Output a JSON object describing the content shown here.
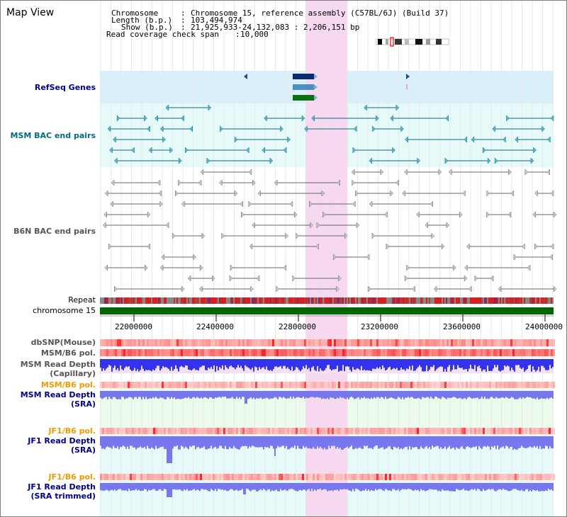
{
  "title": "Map View",
  "header": {
    "chromosome_key": "Chromosome",
    "chromosome_val": "Chromosome 15, reference assembly (C57BL/6J) (Build 37)",
    "length_key": "Length (b.p.)",
    "length_val": "103,494,974",
    "show_key": "Show (b.p.)",
    "show_val": "21,925,933-24,132,083 : 2,206,151 bp",
    "read_key": "Read coverage check span",
    "read_val": "10,000"
  },
  "tracks": {
    "refseq": "RefSeq Genes",
    "msm_bac": "MSM BAC end pairs",
    "b6n_bac": "B6N BAC end pairs",
    "repeat": "Repeat",
    "chromosome": "chromosome 15",
    "dbsnp": "dbSNP(Mouse)",
    "msm_pol": "MSM/B6 pol.",
    "msm_depth_cap_1": "MSM Read Depth",
    "msm_depth_cap_2": "(Capillary)",
    "msm_pol_2": "MSM/B6 pol.",
    "msm_depth_sra_1": "MSM Read Depth",
    "msm_depth_sra_2": "(SRA)",
    "jf1_pol": "JF1/B6 pol.",
    "jf1_depth_1": "JF1 Read Depth",
    "jf1_depth_2": "(SRA)",
    "jf1_pol_2": "JF1/B6 pol.",
    "jf1_depth_trim_1": "JF1 Read Depth",
    "jf1_depth_trim_2": "(SRA trimmed)"
  },
  "axis_ticks": [
    "22000000",
    "22400000",
    "22800000",
    "23200000",
    "23600000",
    "24000000"
  ],
  "colors": {
    "highlight": "#f8d8f0",
    "refseq_bg": "#d9f0fa",
    "msm_bg": "#e6fafa",
    "msm_sra_bg": "#edfbed",
    "jf1_bg": "#e6fafa",
    "chromosome": "#006600",
    "depth_msm": "#3333ee",
    "depth_sra": "#7777ee",
    "pol": "#ee3333"
  }
}
